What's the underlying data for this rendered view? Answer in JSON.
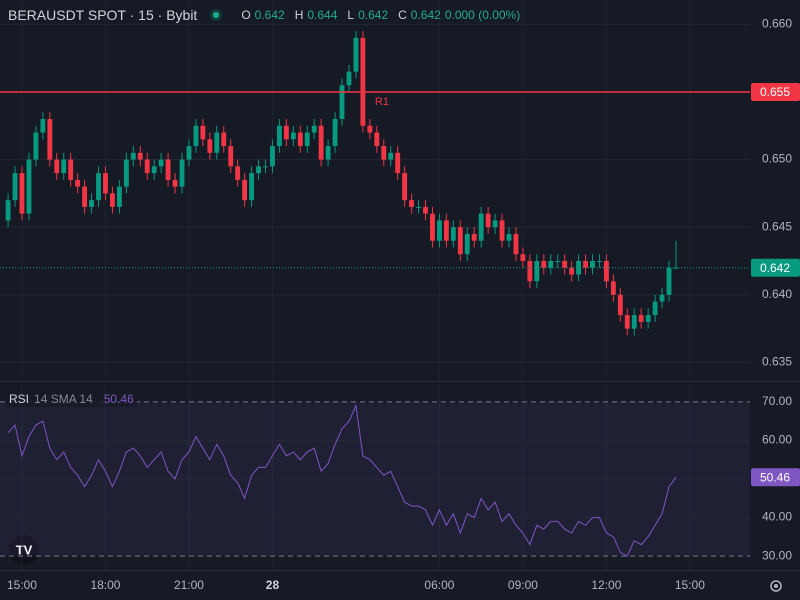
{
  "chart_data": [
    {
      "type": "candlestick",
      "title": "BERAUSDT SPOT · 15 · Bybit",
      "ohlc_labels": [
        "O",
        "H",
        "L",
        "C"
      ],
      "change": "0.000 (0.00%)",
      "up_color": "#089981",
      "down_color": "#f23645",
      "grid": true,
      "x": [
        14.5,
        14.75,
        15,
        15.25,
        15.5,
        15.75,
        16,
        16.25,
        16.5,
        16.75,
        17,
        17.25,
        17.5,
        17.75,
        18,
        18.25,
        18.5,
        18.75,
        19,
        19.25,
        19.5,
        19.75,
        20,
        20.25,
        20.5,
        20.75,
        21,
        21.25,
        21.5,
        21.75,
        22,
        22.25,
        22.5,
        22.75,
        23,
        23.25,
        23.5,
        23.75,
        24,
        24.25,
        24.5,
        24.75,
        25,
        25.25,
        25.5,
        25.75,
        26,
        26.25,
        26.5,
        26.75,
        27,
        27.25,
        27.5,
        27.75,
        28,
        28.25,
        28.5,
        28.75,
        29,
        29.25,
        29.5,
        29.75,
        30,
        30.25,
        30.5,
        30.75,
        31,
        31.25,
        31.5,
        31.75,
        32,
        32.25,
        32.5,
        32.75,
        33,
        33.25,
        33.5,
        33.75,
        34,
        34.25,
        34.5,
        34.75,
        35,
        35.25,
        35.5,
        35.75,
        36,
        36.25,
        36.5,
        36.75,
        37,
        37.25,
        37.5,
        37.75,
        38,
        38.25,
        38.5
      ],
      "open": [
        0.6455,
        0.647,
        0.649,
        0.646,
        0.65,
        0.652,
        0.653,
        0.65,
        0.649,
        0.65,
        0.6485,
        0.648,
        0.6465,
        0.647,
        0.649,
        0.6475,
        0.6465,
        0.648,
        0.65,
        0.6505,
        0.65,
        0.649,
        0.6495,
        0.65,
        0.6485,
        0.648,
        0.65,
        0.651,
        0.6525,
        0.6515,
        0.6505,
        0.652,
        0.651,
        0.6495,
        0.6485,
        0.647,
        0.649,
        0.6495,
        0.6495,
        0.651,
        0.6525,
        0.6515,
        0.652,
        0.651,
        0.652,
        0.6525,
        0.65,
        0.651,
        0.653,
        0.6555,
        0.6565,
        0.659,
        0.6525,
        0.652,
        0.651,
        0.65,
        0.6505,
        0.649,
        0.647,
        0.6465,
        0.6465,
        0.646,
        0.644,
        0.6455,
        0.644,
        0.645,
        0.643,
        0.6445,
        0.644,
        0.646,
        0.645,
        0.6455,
        0.644,
        0.6445,
        0.643,
        0.6425,
        0.641,
        0.6425,
        0.642,
        0.6425,
        0.6425,
        0.642,
        0.6415,
        0.6425,
        0.642,
        0.6425,
        0.6425,
        0.641,
        0.64,
        0.6385,
        0.6375,
        0.6385,
        0.638,
        0.6385,
        0.6395,
        0.64,
        0.642
      ],
      "high": [
        0.6475,
        0.6495,
        0.6495,
        0.6505,
        0.6525,
        0.6535,
        0.6535,
        0.6505,
        0.6505,
        0.6505,
        0.649,
        0.6485,
        0.6475,
        0.6495,
        0.6495,
        0.648,
        0.6485,
        0.6505,
        0.651,
        0.651,
        0.6505,
        0.65,
        0.6505,
        0.6505,
        0.649,
        0.6505,
        0.6515,
        0.653,
        0.653,
        0.652,
        0.6525,
        0.6525,
        0.6515,
        0.65,
        0.649,
        0.6495,
        0.65,
        0.65,
        0.6515,
        0.653,
        0.653,
        0.6525,
        0.6525,
        0.6525,
        0.653,
        0.653,
        0.6515,
        0.6535,
        0.656,
        0.657,
        0.6595,
        0.6595,
        0.653,
        0.6525,
        0.6515,
        0.651,
        0.651,
        0.6495,
        0.6475,
        0.647,
        0.647,
        0.6465,
        0.646,
        0.646,
        0.6455,
        0.6455,
        0.645,
        0.645,
        0.6465,
        0.6465,
        0.646,
        0.646,
        0.645,
        0.645,
        0.6435,
        0.643,
        0.643,
        0.643,
        0.643,
        0.643,
        0.643,
        0.6425,
        0.643,
        0.643,
        0.643,
        0.643,
        0.643,
        0.6415,
        0.6405,
        0.639,
        0.639,
        0.639,
        0.639,
        0.64,
        0.6405,
        0.6425,
        0.644
      ],
      "low": [
        0.645,
        0.6465,
        0.6455,
        0.6455,
        0.6495,
        0.6515,
        0.6495,
        0.6485,
        0.6485,
        0.648,
        0.6475,
        0.646,
        0.646,
        0.6465,
        0.647,
        0.646,
        0.646,
        0.6475,
        0.6495,
        0.6495,
        0.6485,
        0.6485,
        0.649,
        0.648,
        0.6475,
        0.6475,
        0.6495,
        0.6505,
        0.651,
        0.65,
        0.65,
        0.6505,
        0.649,
        0.648,
        0.6465,
        0.6465,
        0.6485,
        0.649,
        0.649,
        0.6505,
        0.651,
        0.651,
        0.6505,
        0.6505,
        0.6515,
        0.6495,
        0.6495,
        0.6505,
        0.6525,
        0.655,
        0.656,
        0.652,
        0.6515,
        0.6505,
        0.6495,
        0.6495,
        0.6485,
        0.6465,
        0.646,
        0.646,
        0.6455,
        0.6435,
        0.6435,
        0.6435,
        0.6435,
        0.6425,
        0.6425,
        0.6435,
        0.6435,
        0.6445,
        0.6445,
        0.6435,
        0.6435,
        0.6425,
        0.642,
        0.6405,
        0.6405,
        0.6415,
        0.6415,
        0.642,
        0.6415,
        0.641,
        0.641,
        0.6415,
        0.6415,
        0.642,
        0.6405,
        0.6395,
        0.638,
        0.637,
        0.637,
        0.6375,
        0.6375,
        0.638,
        0.639,
        0.6395,
        0.642
      ],
      "close": [
        0.647,
        0.649,
        0.646,
        0.65,
        0.652,
        0.653,
        0.65,
        0.649,
        0.65,
        0.6485,
        0.648,
        0.6465,
        0.647,
        0.649,
        0.6475,
        0.6465,
        0.648,
        0.65,
        0.6505,
        0.65,
        0.649,
        0.6495,
        0.65,
        0.6485,
        0.648,
        0.65,
        0.651,
        0.6525,
        0.6515,
        0.6505,
        0.652,
        0.651,
        0.6495,
        0.6485,
        0.647,
        0.649,
        0.6495,
        0.6495,
        0.651,
        0.6525,
        0.6515,
        0.652,
        0.651,
        0.652,
        0.6525,
        0.65,
        0.651,
        0.653,
        0.6555,
        0.6565,
        0.659,
        0.6525,
        0.652,
        0.651,
        0.65,
        0.6505,
        0.649,
        0.647,
        0.6465,
        0.6465,
        0.646,
        0.644,
        0.6455,
        0.644,
        0.645,
        0.643,
        0.6445,
        0.644,
        0.646,
        0.645,
        0.6455,
        0.644,
        0.6445,
        0.643,
        0.6425,
        0.641,
        0.6425,
        0.642,
        0.6425,
        0.6425,
        0.642,
        0.6415,
        0.6425,
        0.642,
        0.6425,
        0.6425,
        0.641,
        0.64,
        0.6385,
        0.6375,
        0.6385,
        0.638,
        0.6385,
        0.6395,
        0.64,
        0.642,
        0.642
      ],
      "xlim": [
        14.21,
        41.16
      ],
      "xticks": [
        {
          "value": 15,
          "label": "15:00"
        },
        {
          "value": 18,
          "label": "18:00"
        },
        {
          "value": 21,
          "label": "21:00"
        },
        {
          "value": 24,
          "label": "28"
        },
        {
          "value": 30,
          "label": "06:00"
        },
        {
          "value": 33,
          "label": "09:00"
        },
        {
          "value": 36,
          "label": "12:00"
        },
        {
          "value": 39,
          "label": "15:00"
        }
      ],
      "ylim": [
        0.6337,
        0.6618
      ],
      "yticks": [
        {
          "value": 0.635,
          "label": "0.635"
        },
        {
          "value": 0.64,
          "label": "0.640"
        },
        {
          "value": 0.645,
          "label": "0.645"
        },
        {
          "value": 0.65,
          "label": "0.650"
        },
        {
          "value": 0.655,
          "label": "0.655"
        },
        {
          "value": 0.66,
          "label": "0.660"
        }
      ],
      "levels": [
        {
          "name": "R1",
          "value": 0.655,
          "label": "0.655",
          "color": "#f23645"
        }
      ],
      "last_price": {
        "value": 0.642,
        "label": "0.642",
        "color": "#089981"
      }
    },
    {
      "type": "line",
      "title": "RSI",
      "subtitle": "14 SMA 14",
      "color": "#7e57c2",
      "band": [
        30,
        70
      ],
      "values": [
        62,
        64,
        56,
        61,
        64,
        65,
        58,
        55,
        57,
        53,
        51,
        48,
        51,
        55,
        52,
        48,
        52,
        57,
        58,
        56,
        53,
        55,
        57,
        52,
        50,
        55,
        57,
        61,
        58,
        55,
        59,
        56,
        51,
        49,
        45,
        51,
        53,
        53,
        56,
        59,
        56,
        57,
        55,
        57,
        58,
        52,
        54,
        59,
        63,
        65,
        69,
        56,
        55,
        53,
        51,
        52,
        48,
        44,
        43,
        43,
        42,
        38,
        42,
        38,
        41,
        36,
        41,
        40,
        45,
        42,
        44,
        39,
        41,
        38,
        36,
        33,
        38,
        37,
        39,
        39,
        37,
        36,
        39,
        38,
        40,
        40,
        36,
        35,
        31,
        30,
        34,
        33,
        35,
        38,
        41,
        48,
        50.46
      ],
      "ylim": [
        26.4,
        74.9
      ],
      "yticks": [
        {
          "value": 30,
          "label": "30.00"
        },
        {
          "value": 40,
          "label": "40.00"
        },
        {
          "value": 50,
          "label": "50.00"
        },
        {
          "value": 60,
          "label": "60.00"
        },
        {
          "value": 70,
          "label": "70.00"
        }
      ]
    }
  ]
}
